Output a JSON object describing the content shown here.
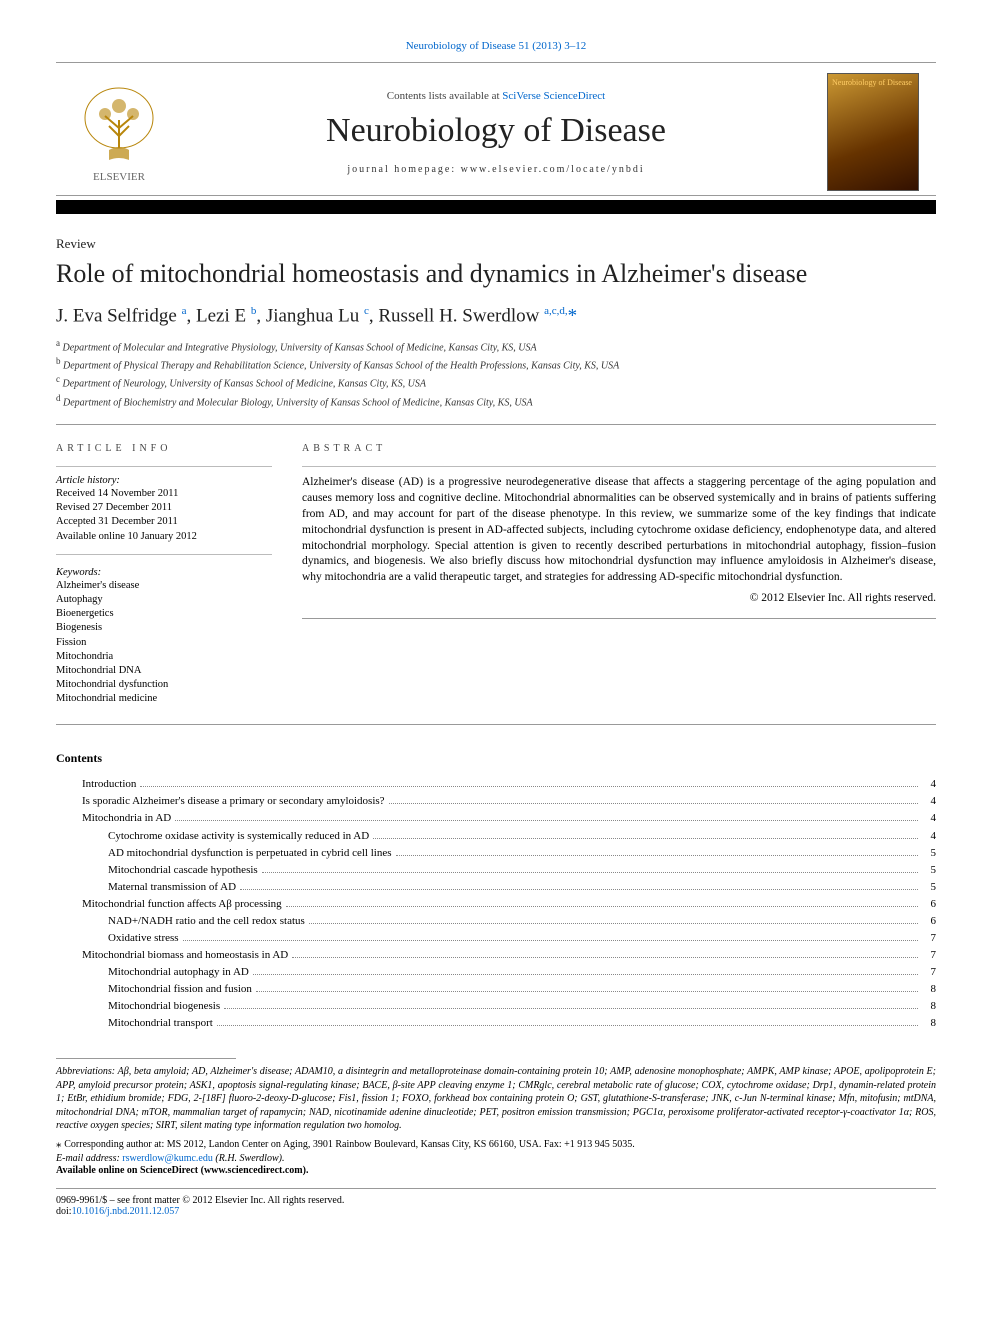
{
  "top_citation": "Neurobiology of Disease 51 (2013) 3–12",
  "banner": {
    "contents_prefix": "Contents lists available at ",
    "contents_link": "SciVerse ScienceDirect",
    "journal": "Neurobiology of Disease",
    "homepage_prefix": "journal homepage: ",
    "homepage": "www.elsevier.com/locate/ynbdi"
  },
  "article_type": "Review",
  "title": "Role of mitochondrial homeostasis and dynamics in Alzheimer's disease",
  "authors_html": "J. Eva Selfridge <sup>a</sup>, Lezi E <sup>b</sup>, Jianghua Lu <sup>c</sup>, Russell H. Swerdlow <sup>a,c,d,</sup><span class='star'>*</span>",
  "affiliations": [
    {
      "sup": "a",
      "text": "Department of Molecular and Integrative Physiology, University of Kansas School of Medicine, Kansas City, KS, USA"
    },
    {
      "sup": "b",
      "text": "Department of Physical Therapy and Rehabilitation Science, University of Kansas School of the Health Professions, Kansas City, KS, USA"
    },
    {
      "sup": "c",
      "text": "Department of Neurology, University of Kansas School of Medicine, Kansas City, KS, USA"
    },
    {
      "sup": "d",
      "text": "Department of Biochemistry and Molecular Biology, University of Kansas School of Medicine, Kansas City, KS, USA"
    }
  ],
  "info": {
    "head": "ARTICLE INFO",
    "history_head": "Article history:",
    "history": [
      "Received 14 November 2011",
      "Revised 27 December 2011",
      "Accepted 31 December 2011",
      "Available online 10 January 2012"
    ],
    "keywords_head": "Keywords:",
    "keywords": [
      "Alzheimer's disease",
      "Autophagy",
      "Bioenergetics",
      "Biogenesis",
      "Fission",
      "Mitochondria",
      "Mitochondrial DNA",
      "Mitochondrial dysfunction",
      "Mitochondrial medicine"
    ]
  },
  "abstract": {
    "head": "ABSTRACT",
    "text": "Alzheimer's disease (AD) is a progressive neurodegenerative disease that affects a staggering percentage of the aging population and causes memory loss and cognitive decline. Mitochondrial abnormalities can be observed systemically and in brains of patients suffering from AD, and may account for part of the disease phenotype. In this review, we summarize some of the key findings that indicate mitochondrial dysfunction is present in AD-affected subjects, including cytochrome oxidase deficiency, endophenotype data, and altered mitochondrial morphology. Special attention is given to recently described perturbations in mitochondrial autophagy, fission–fusion dynamics, and biogenesis. We also briefly discuss how mitochondrial dysfunction may influence amyloidosis in Alzheimer's disease, why mitochondria are a valid therapeutic target, and strategies for addressing AD-specific mitochondrial dysfunction.",
    "copyright": "© 2012 Elsevier Inc. All rights reserved."
  },
  "contents": {
    "title": "Contents",
    "items": [
      {
        "label": "Introduction",
        "page": "4",
        "indent": 1
      },
      {
        "label": "Is sporadic Alzheimer's disease a primary or secondary amyloidosis?",
        "page": "4",
        "indent": 1
      },
      {
        "label": "Mitochondria in AD",
        "page": "4",
        "indent": 1
      },
      {
        "label": "Cytochrome oxidase activity is systemically reduced in AD",
        "page": "4",
        "indent": 2
      },
      {
        "label": "AD mitochondrial dysfunction is perpetuated in cybrid cell lines",
        "page": "5",
        "indent": 2
      },
      {
        "label": "Mitochondrial cascade hypothesis",
        "page": "5",
        "indent": 2
      },
      {
        "label": "Maternal transmission of AD",
        "page": "5",
        "indent": 2
      },
      {
        "label": "Mitochondrial function affects Aβ processing",
        "page": "6",
        "indent": 1
      },
      {
        "label": "NAD+/NADH ratio and the cell redox status",
        "page": "6",
        "indent": 2
      },
      {
        "label": "Oxidative stress",
        "page": "7",
        "indent": 2
      },
      {
        "label": "Mitochondrial biomass and homeostasis in AD",
        "page": "7",
        "indent": 1
      },
      {
        "label": "Mitochondrial autophagy in AD",
        "page": "7",
        "indent": 2
      },
      {
        "label": "Mitochondrial fission and fusion",
        "page": "8",
        "indent": 2
      },
      {
        "label": "Mitochondrial biogenesis",
        "page": "8",
        "indent": 2
      },
      {
        "label": "Mitochondrial transport",
        "page": "8",
        "indent": 2
      }
    ]
  },
  "abbreviations": "Abbreviations: Aβ, beta amyloid; AD, Alzheimer's disease; ADAM10, a disintegrin and metalloproteinase domain-containing protein 10; AMP, adenosine monophosphate; AMPK, AMP kinase; APOE, apolipoprotein E; APP, amyloid precursor protein; ASK1, apoptosis signal-regulating kinase; BACE, β-site APP cleaving enzyme 1; CMRglc, cerebral metabolic rate of glucose; COX, cytochrome oxidase; Drp1, dynamin-related protein 1; EtBr, ethidium bromide; FDG, 2-[18F] fluoro-2-deoxy-D-glucose; Fis1, fission 1; FOXO, forkhead box containing protein O; GST, glutathione-S-transferase; JNK, c-Jun N-terminal kinase; Mfn, mitofusin; mtDNA, mitochondrial DNA; mTOR, mammalian target of rapamycin; NAD, nicotinamide adenine dinucleotide; PET, positron emission transmission; PGC1α, peroxisome proliferator-activated receptor-γ-coactivator 1α; ROS, reactive oxygen species; SIRT, silent mating type information regulation two homolog.",
  "correspondence": "Corresponding author at: MS 2012, Landon Center on Aging, 3901 Rainbow Boulevard, Kansas City, KS 66160, USA. Fax: +1 913 945 5035.",
  "email_label": "E-mail address: ",
  "email": "rswerdlow@kumc.edu",
  "email_suffix": " (R.H. Swerdlow).",
  "available": "Available online on ScienceDirect (www.sciencedirect.com).",
  "issn": "0969-9961/$ – see front matter © 2012 Elsevier Inc. All rights reserved.",
  "doi_prefix": "doi:",
  "doi": "10.1016/j.nbd.2011.12.057",
  "colors": {
    "link": "#0066cc",
    "text": "#000000",
    "rule": "#999999"
  }
}
